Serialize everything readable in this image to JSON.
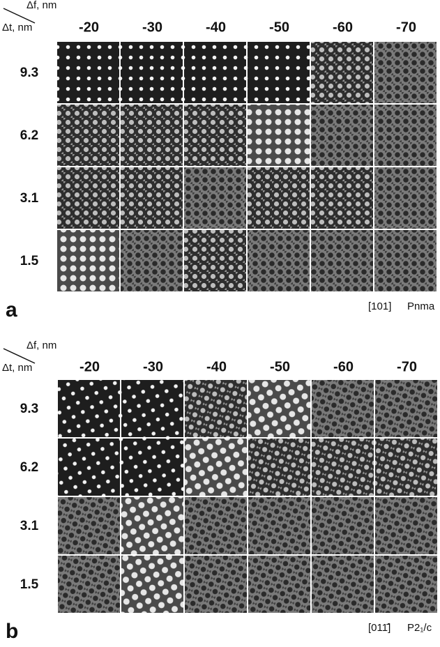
{
  "panels": [
    {
      "label": "a",
      "df_label": "Δf, nm",
      "dt_label": "Δt, nm",
      "columns": [
        "-20",
        "-30",
        "-40",
        "-50",
        "-60",
        "-70"
      ],
      "rows": [
        "9.3",
        "6.2",
        "3.1",
        "1.5"
      ],
      "zone_axis": "[101]",
      "space_group": "Pnma"
    },
    {
      "label": "b",
      "df_label": "Δf, nm",
      "dt_label": "Δt, nm",
      "columns": [
        "-20",
        "-30",
        "-40",
        "-50",
        "-60",
        "-70"
      ],
      "rows": [
        "9.3",
        "6.2",
        "3.1",
        "1.5"
      ],
      "zone_axis": "[011̄]",
      "space_group": "P2₁/c"
    }
  ]
}
